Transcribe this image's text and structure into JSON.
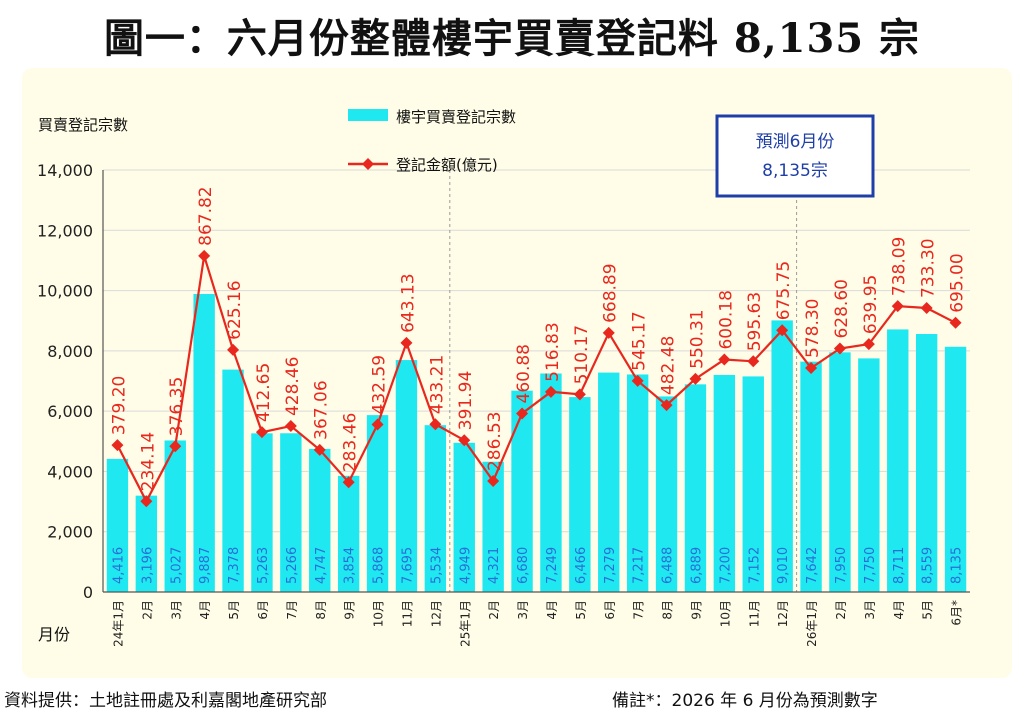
{
  "title": "圖一：六月份整體樓宇買賣登記料 8,135 宗",
  "footer": {
    "source": "資料提供：土地註冊處及利嘉閣地產研究部",
    "note": "備註*：2026 年 6 月份為預測數字"
  },
  "forecast_box": {
    "line1": "預測6月份",
    "line2": "8,135宗"
  },
  "colors": {
    "plot_bg": "#FFFDE7",
    "bar": "#1FE8F0",
    "line": "#E8281E",
    "bar_label": "#2A6FD6",
    "box_border": "#1F3FA8",
    "box_text": "#1F3FA8"
  },
  "chart_data": {
    "type": "bar",
    "ylabel": "買賣登記宗數",
    "xlabel": "月份",
    "ylim": [
      0,
      14000
    ],
    "yticks": [
      "0",
      "2,000",
      "4,000",
      "6,000",
      "8,000",
      "10,000",
      "12,000",
      "14,000"
    ],
    "legend_position": "top-left",
    "categories": [
      "24年1月",
      "2月",
      "3月",
      "4月",
      "5月",
      "6月",
      "7月",
      "8月",
      "9月",
      "10月",
      "11月",
      "12月",
      "25年1月",
      "2月",
      "3月",
      "4月",
      "5月",
      "6月",
      "7月",
      "8月",
      "9月",
      "10月",
      "11月",
      "12月",
      "26年1月",
      "2月",
      "3月",
      "4月",
      "5月",
      "6月*"
    ],
    "series": [
      {
        "name": "樓宇買賣登記宗數",
        "type": "bar",
        "values": [
          4416,
          3196,
          5027,
          9887,
          7378,
          5263,
          5266,
          4747,
          3854,
          5868,
          7695,
          5534,
          4949,
          4321,
          6680,
          7249,
          6466,
          7279,
          7217,
          6488,
          6889,
          7200,
          7152,
          9010,
          7642,
          7950,
          7750,
          8711,
          8559,
          8135
        ],
        "labels": [
          "4,416",
          "3,196",
          "5,027",
          "9,887",
          "7,378",
          "5,263",
          "5,266",
          "4,747",
          "3,854",
          "5,868",
          "7,695",
          "5,534",
          "4,949",
          "4,321",
          "6,680",
          "7,249",
          "6,466",
          "7,279",
          "7,217",
          "6,488",
          "6,889",
          "7,200",
          "7,152",
          "9,010",
          "7,642",
          "7,950",
          "7,750",
          "8,711",
          "8,559",
          "8,135"
        ]
      },
      {
        "name": "登記金額(億元)",
        "type": "line",
        "values": [
          379.2,
          234.14,
          376.35,
          867.82,
          625.16,
          412.65,
          428.46,
          367.06,
          283.46,
          432.59,
          643.13,
          433.21,
          391.94,
          286.53,
          460.88,
          516.83,
          510.17,
          668.89,
          545.17,
          482.48,
          550.31,
          600.18,
          595.63,
          675.75,
          578.3,
          628.6,
          639.95,
          738.09,
          733.3,
          695.0
        ],
        "labels": [
          "379.20",
          "234.14",
          "376.35",
          "867.82",
          "625.16",
          "412.65",
          "428.46",
          "367.06",
          "283.46",
          "432.59",
          "643.13",
          "433.21",
          "391.94",
          "286.53",
          "460.88",
          "516.83",
          "510.17",
          "668.89",
          "545.17",
          "482.48",
          "550.31",
          "600.18",
          "595.63",
          "675.75",
          "578.30",
          "628.60",
          "639.95",
          "738.09",
          "733.30",
          "695.00"
        ]
      }
    ]
  }
}
